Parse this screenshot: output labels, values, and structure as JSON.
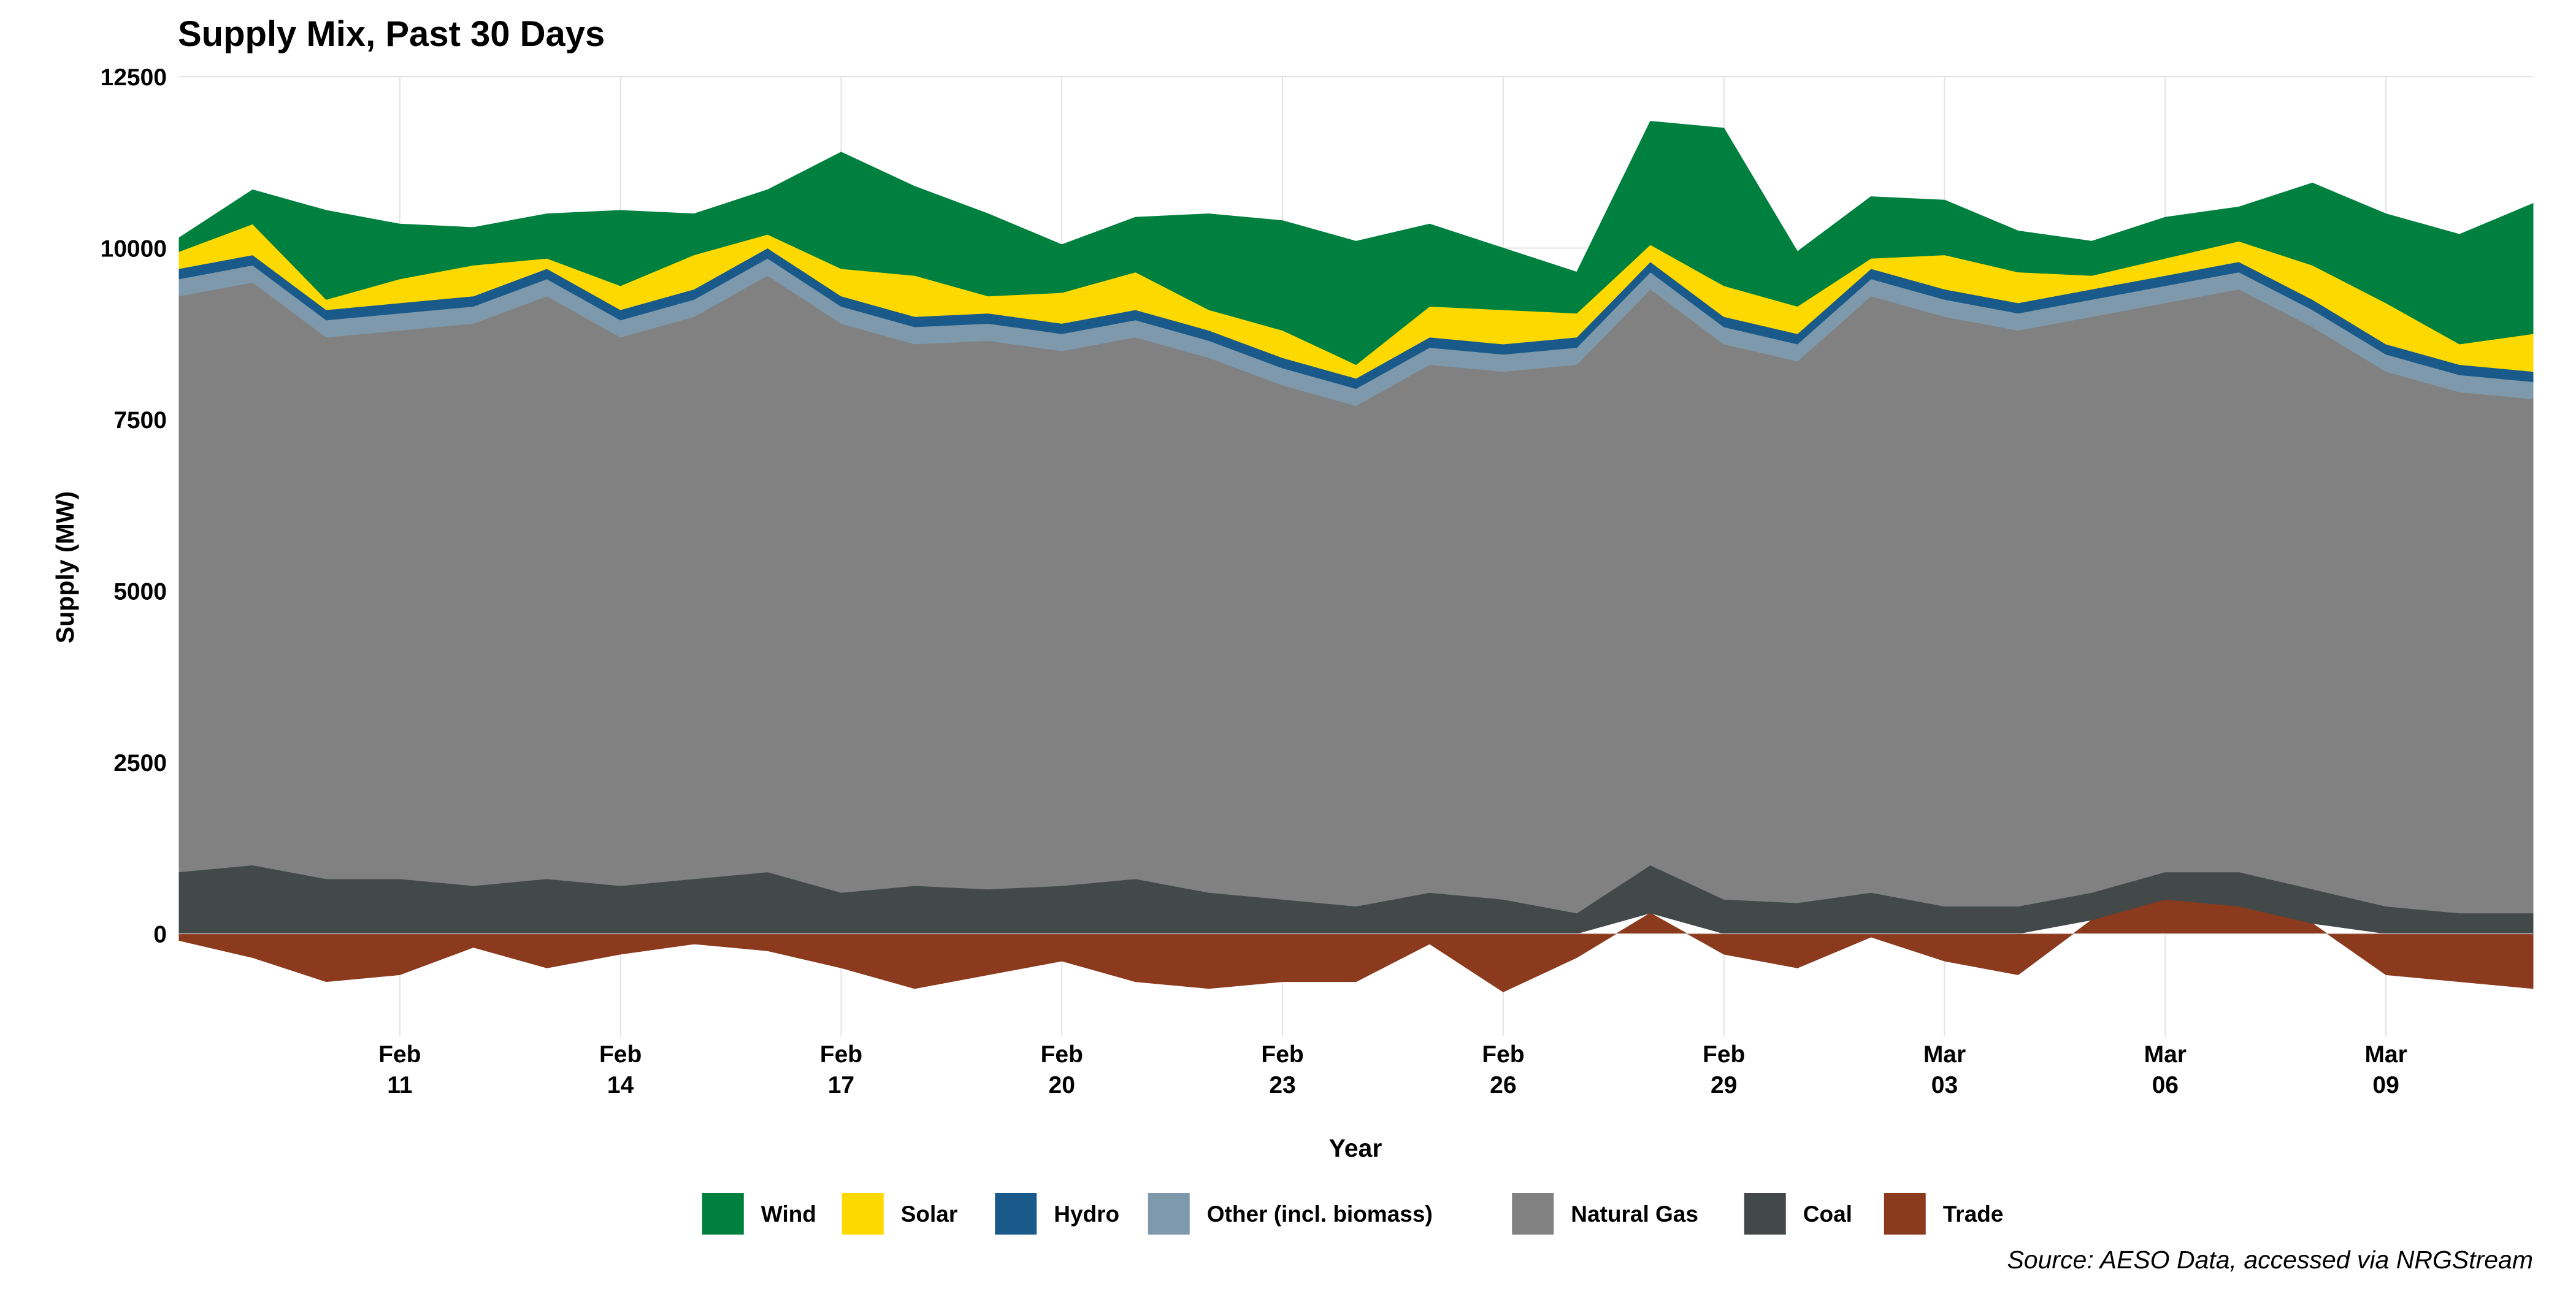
{
  "chart_data": {
    "type": "area",
    "stacked": true,
    "title": "Supply Mix, Past 30 Days",
    "xlabel": "Year",
    "ylabel": "Supply (MW)",
    "source": "Source: AESO Data, accessed via NRGStream",
    "ylim": [
      -1500,
      12500
    ],
    "yticks": [
      0,
      2500,
      5000,
      7500,
      10000,
      12500
    ],
    "xlim": [
      "2024-02-08",
      "2024-03-11"
    ],
    "xticks": [
      {
        "date": "2024-02-11",
        "month": "Feb",
        "day": "11"
      },
      {
        "date": "2024-02-14",
        "month": "Feb",
        "day": "14"
      },
      {
        "date": "2024-02-17",
        "month": "Feb",
        "day": "17"
      },
      {
        "date": "2024-02-20",
        "month": "Feb",
        "day": "20"
      },
      {
        "date": "2024-02-23",
        "month": "Feb",
        "day": "23"
      },
      {
        "date": "2024-02-26",
        "month": "Feb",
        "day": "26"
      },
      {
        "date": "2024-02-29",
        "month": "Feb",
        "day": "29"
      },
      {
        "date": "2024-03-03",
        "month": "Mar",
        "day": "03"
      },
      {
        "date": "2024-03-06",
        "month": "Mar",
        "day": "06"
      },
      {
        "date": "2024-03-09",
        "month": "Mar",
        "day": "09"
      }
    ],
    "grid": true,
    "legend_position": "bottom",
    "dates": [
      "2024-02-08",
      "2024-02-09",
      "2024-02-10",
      "2024-02-11",
      "2024-02-12",
      "2024-02-13",
      "2024-02-14",
      "2024-02-15",
      "2024-02-16",
      "2024-02-17",
      "2024-02-18",
      "2024-02-19",
      "2024-02-20",
      "2024-02-21",
      "2024-02-22",
      "2024-02-23",
      "2024-02-24",
      "2024-02-25",
      "2024-02-26",
      "2024-02-27",
      "2024-02-28",
      "2024-02-29",
      "2024-03-01",
      "2024-03-02",
      "2024-03-03",
      "2024-03-04",
      "2024-03-05",
      "2024-03-06",
      "2024-03-07",
      "2024-03-08",
      "2024-03-09",
      "2024-03-10",
      "2024-03-11"
    ],
    "series": [
      {
        "name": "Trade",
        "color": "#8B3A1E",
        "values": [
          -100,
          -350,
          -700,
          -600,
          -200,
          -500,
          -300,
          -150,
          -250,
          -500,
          -800,
          -600,
          -400,
          -700,
          -800,
          -700,
          -700,
          -150,
          -850,
          -350,
          300,
          -300,
          -500,
          -50,
          -400,
          -600,
          200,
          500,
          400,
          150,
          -600,
          -700,
          -800
        ]
      },
      {
        "name": "Coal",
        "color": "#434949",
        "values": [
          900,
          1000,
          800,
          800,
          700,
          800,
          700,
          800,
          900,
          600,
          700,
          650,
          700,
          800,
          600,
          500,
          400,
          600,
          500,
          300,
          700,
          500,
          450,
          600,
          400,
          400,
          400,
          400,
          500,
          500,
          400,
          300,
          300
        ]
      },
      {
        "name": "Natural Gas",
        "color": "#818181",
        "values": [
          8400,
          8500,
          7900,
          8000,
          8200,
          8500,
          8000,
          8200,
          8700,
          8300,
          7900,
          8000,
          7800,
          7900,
          7800,
          7500,
          7300,
          7700,
          7700,
          8000,
          8400,
          8100,
          7900,
          8700,
          8600,
          8400,
          8400,
          8300,
          8500,
          8200,
          7800,
          7600,
          7500
        ]
      },
      {
        "name": "Other (incl. biomass)",
        "color": "#7E99AB",
        "values": [
          250,
          250,
          250,
          250,
          250,
          250,
          250,
          250,
          250,
          250,
          250,
          250,
          250,
          250,
          250,
          250,
          250,
          250,
          250,
          250,
          250,
          250,
          250,
          250,
          250,
          250,
          250,
          250,
          250,
          250,
          250,
          250,
          250
        ]
      },
      {
        "name": "Hydro",
        "color": "#195A8B",
        "values": [
          150,
          150,
          150,
          150,
          150,
          150,
          150,
          150,
          150,
          150,
          150,
          150,
          150,
          150,
          150,
          150,
          150,
          150,
          150,
          150,
          150,
          150,
          150,
          150,
          150,
          150,
          150,
          150,
          150,
          150,
          150,
          150,
          150
        ]
      },
      {
        "name": "Solar",
        "color": "#FDD900",
        "values": [
          250,
          450,
          150,
          350,
          450,
          150,
          350,
          500,
          200,
          400,
          600,
          250,
          450,
          550,
          300,
          400,
          200,
          450,
          500,
          350,
          250,
          450,
          400,
          150,
          500,
          450,
          200,
          250,
          300,
          500,
          600,
          300,
          550
        ]
      },
      {
        "name": "Wind",
        "color": "#00803E",
        "values": [
          200,
          500,
          1300,
          800,
          550,
          650,
          1100,
          600,
          650,
          1700,
          1300,
          1200,
          700,
          800,
          1400,
          1600,
          1800,
          1200,
          900,
          600,
          1800,
          2300,
          800,
          900,
          800,
          600,
          500,
          600,
          500,
          1200,
          1300,
          1600,
          1900
        ]
      }
    ],
    "legend_order": [
      "Wind",
      "Solar",
      "Hydro",
      "Other (incl. biomass)",
      "Natural Gas",
      "Coal",
      "Trade"
    ]
  }
}
